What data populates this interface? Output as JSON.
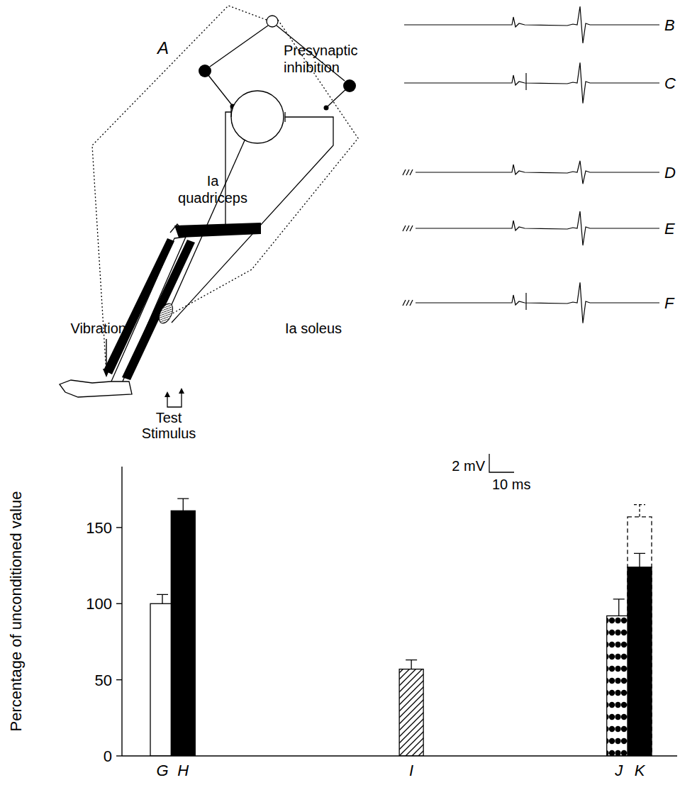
{
  "diagram": {
    "panel_label": "A",
    "presynaptic_label": "Presynaptic inhibition",
    "ia_quadriceps_label": "Ia quadriceps",
    "ia_soleus_label": "Ia soleus",
    "vibration_label": "Vibration",
    "stimulus_label_1": "Test",
    "stimulus_label_2": "Stimulus"
  },
  "traces": {
    "items": [
      {
        "label": "B",
        "vibration": false,
        "conditioning": false,
        "amplitude_mv": 4.0
      },
      {
        "label": "C",
        "vibration": false,
        "conditioning": true,
        "amplitude_mv": 4.4
      },
      {
        "label": "D",
        "vibration": true,
        "conditioning": false,
        "amplitude_mv": 2.5
      },
      {
        "label": "E",
        "vibration": true,
        "conditioning": false,
        "amplitude_mv": 3.7
      },
      {
        "label": "F",
        "vibration": true,
        "conditioning": true,
        "amplitude_mv": 4.4
      }
    ],
    "scale_voltage": "2 mV",
    "scale_time": "10 ms"
  },
  "chart_data": {
    "type": "bar",
    "y_label": "Percentage of unconditioned value",
    "categories": [
      "G",
      "H",
      null,
      null,
      null,
      null,
      null,
      null,
      null,
      null,
      null,
      null,
      "I",
      null,
      null,
      null,
      null,
      null,
      null,
      null,
      null,
      null,
      "J",
      "K"
    ],
    "series": [
      {
        "values": [
          100,
          161,
          null,
          null,
          null,
          null,
          null,
          null,
          null,
          null,
          null,
          null,
          57,
          null,
          null,
          null,
          null,
          null,
          null,
          null,
          null,
          null,
          92,
          124
        ],
        "errors": [
          6,
          8,
          null,
          null,
          null,
          null,
          null,
          null,
          null,
          null,
          null,
          null,
          6,
          null,
          null,
          null,
          null,
          null,
          null,
          null,
          null,
          null,
          11,
          9
        ],
        "colors": [
          "#ffffff",
          "#000000",
          null,
          null,
          null,
          null,
          null,
          null,
          null,
          null,
          null,
          null,
          "hatch",
          null,
          null,
          null,
          null,
          null,
          null,
          null,
          null,
          null,
          "dots",
          "#000000"
        ]
      },
      {
        "values": [
          null,
          null,
          null,
          null,
          null,
          null,
          null,
          null,
          null,
          null,
          null,
          null,
          null,
          null,
          null,
          null,
          null,
          null,
          null,
          null,
          null,
          null,
          null,
          157
        ],
        "errors": [
          null,
          null,
          null,
          null,
          null,
          null,
          null,
          null,
          null,
          null,
          null,
          null,
          null,
          null,
          null,
          null,
          null,
          null,
          null,
          null,
          null,
          null,
          null,
          8
        ],
        "color": "#ffffff",
        "line_style": "dashed"
      }
    ],
    "ylim": [
      0,
      190
    ],
    "yticks": [
      0,
      50,
      100,
      150
    ],
    "grid": false
  }
}
